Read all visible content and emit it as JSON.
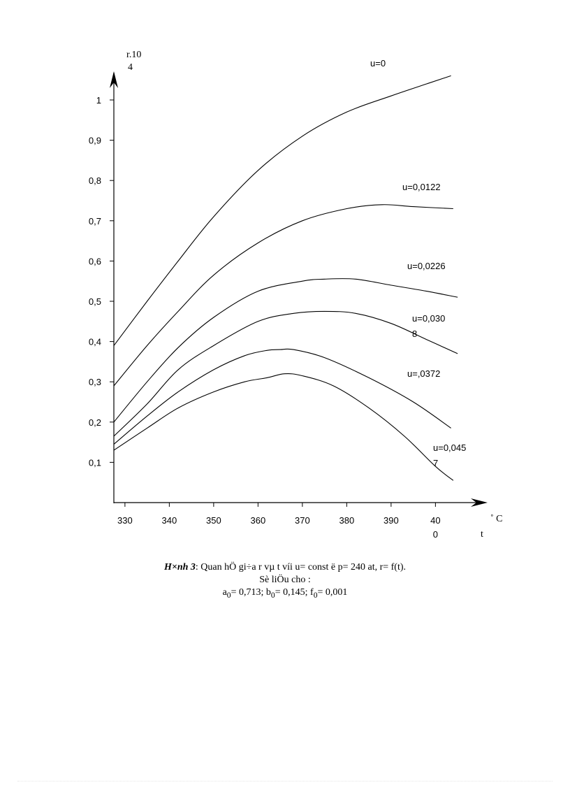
{
  "chart_data": {
    "type": "line",
    "ylabel": "r.10",
    "ylabel_exp": "4",
    "xlabel": "t",
    "xunit": "˚ C",
    "x_ticks": [
      "330",
      "340",
      "350",
      "360",
      "370",
      "380",
      "390",
      "40"
    ],
    "x_tick_last_line2": "0",
    "y_ticks": [
      "0,1",
      "0,2",
      "0,3",
      "0,4",
      "0,5",
      "0,6",
      "0,7",
      "0,8",
      "0,9",
      "1"
    ],
    "xlim": [
      327.5,
      405
    ],
    "ylim": [
      0,
      1.05
    ],
    "series": [
      {
        "name": "u=0",
        "name_line2": "",
        "x": [
          327.5,
          335,
          342,
          350,
          360,
          370,
          380,
          390,
          398,
          403.5
        ],
        "y": [
          0.39,
          0.5,
          0.6,
          0.71,
          0.825,
          0.91,
          0.97,
          1.01,
          1.04,
          1.06
        ]
      },
      {
        "name": "u=0,0122",
        "name_line2": "",
        "x": [
          327.5,
          335,
          342,
          350,
          360,
          370,
          380,
          388,
          395,
          404
        ],
        "y": [
          0.29,
          0.39,
          0.475,
          0.565,
          0.645,
          0.7,
          0.73,
          0.74,
          0.735,
          0.73
        ]
      },
      {
        "name": "u=0,0226",
        "name_line2": "",
        "x": [
          327.5,
          335,
          342,
          350,
          360,
          370,
          375,
          382,
          390,
          398,
          405
        ],
        "y": [
          0.2,
          0.3,
          0.385,
          0.46,
          0.525,
          0.55,
          0.555,
          0.555,
          0.54,
          0.525,
          0.51
        ]
      },
      {
        "name": "u=0,030",
        "name_line2": "8",
        "x": [
          327.5,
          335,
          342,
          350,
          360,
          368,
          375,
          382,
          390,
          398,
          405
        ],
        "y": [
          0.165,
          0.245,
          0.33,
          0.39,
          0.45,
          0.47,
          0.475,
          0.47,
          0.445,
          0.405,
          0.37
        ]
      },
      {
        "name": "u=,0372",
        "name_line2": "",
        "x": [
          327.5,
          335,
          342,
          350,
          357,
          362,
          365,
          368,
          375,
          385,
          395,
          403.5
        ],
        "y": [
          0.145,
          0.215,
          0.275,
          0.33,
          0.365,
          0.378,
          0.38,
          0.38,
          0.36,
          0.31,
          0.25,
          0.185
        ]
      },
      {
        "name": "u=0,045",
        "name_line2": "7",
        "x": [
          327.5,
          335,
          342,
          350,
          357,
          362,
          366,
          370,
          377,
          385,
          393,
          400,
          404
        ],
        "y": [
          0.13,
          0.185,
          0.235,
          0.275,
          0.3,
          0.31,
          0.32,
          0.315,
          0.29,
          0.235,
          0.165,
          0.09,
          0.055
        ]
      }
    ]
  },
  "caption": {
    "fig_label": "H×nh  3",
    "line1": ": Quan hÖ gi÷a r vµ  t víi u= const ë p= 240 at, r= f(t).",
    "line2": "Sè liÖu cho :",
    "a_sym": "a",
    "a_val": "= 0,713;  ",
    "b_sym": "b",
    "b_val": "= 0,145; ",
    "f_sym": "f",
    "f_val": "= 0,001",
    "sub": "0"
  }
}
